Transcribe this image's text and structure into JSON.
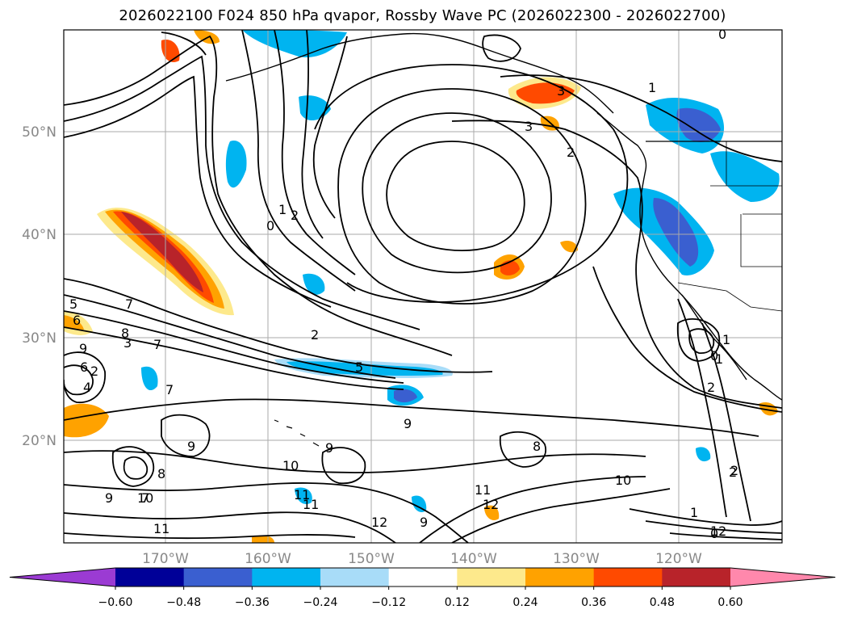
{
  "title": "2026022100 F024 850 hPa qvapor, Rossby Wave PC (2026022300 - 2026022700)",
  "lat_labels": [
    "50°N",
    "40°N",
    "30°N",
    "20°N"
  ],
  "lon_labels": [
    "170°W",
    "160°W",
    "150°W",
    "140°W",
    "130°W",
    "120°W"
  ],
  "colorbar": {
    "ticks": [
      "−0.60",
      "−0.48",
      "−0.36",
      "−0.24",
      "−0.12",
      "0.12",
      "0.24",
      "0.36",
      "0.48",
      "0.60"
    ],
    "colors": [
      "#9b3bd3",
      "#000098",
      "#3a5fd0",
      "#00b4f0",
      "#a8dcf8",
      "#ffffff",
      "#fde98c",
      "#ffa200",
      "#ff4a00",
      "#b8232a",
      "#ff88ac"
    ]
  },
  "contour_labels": [
    "5",
    "6",
    "7",
    "7",
    "8",
    "9",
    "6",
    "7",
    "8",
    "9",
    "9",
    "10",
    "11",
    "11",
    "12",
    "9",
    "1",
    "2",
    "2",
    "3",
    "3",
    "0",
    "1",
    "2",
    "1",
    "0",
    "1",
    "2",
    "2",
    "0",
    "9",
    "8",
    "9",
    "10",
    "11",
    "12",
    "10",
    "11",
    "12",
    "7",
    "5",
    "4",
    "2",
    "3",
    "0",
    "1",
    "2"
  ],
  "colors": {
    "cool_dark": "#3a5fd0",
    "cool_mid": "#00b4f0",
    "cool_light": "#a8dcf8",
    "warm_light": "#fde98c",
    "warm_mid": "#ffa200",
    "warm_strong": "#ff4a00",
    "warm_dark": "#b8232a"
  }
}
